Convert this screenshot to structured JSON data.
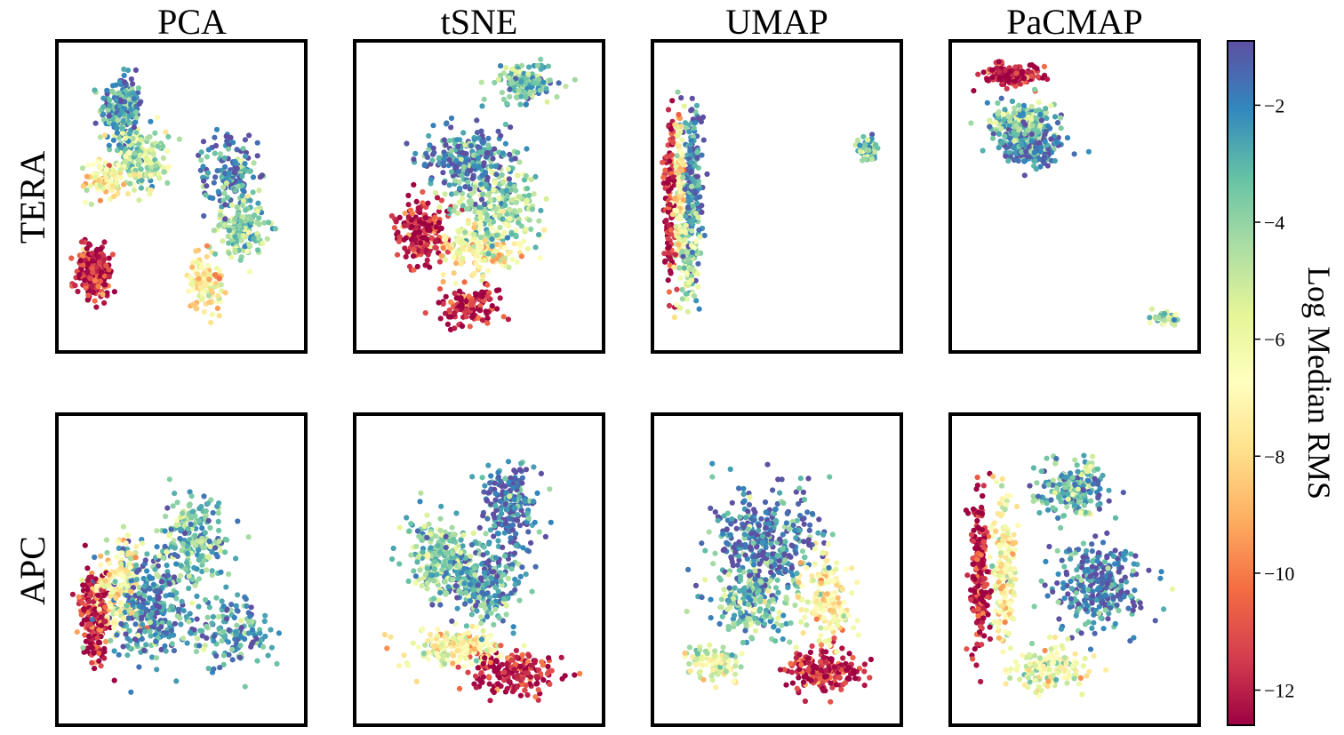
{
  "chart_data": {
    "type": "scatter",
    "title": "",
    "columns": [
      "PCA",
      "tSNE",
      "UMAP",
      "PaCMAP"
    ],
    "rows": [
      "TERA",
      "APC"
    ],
    "panels": [
      {
        "row": "TERA",
        "method": "PCA",
        "clusters": [
          {
            "center": [
              0.26,
              0.78
            ],
            "spread": [
              0.07,
              0.09
            ],
            "color_value": -2.5,
            "n": 220
          },
          {
            "center": [
              0.33,
              0.62
            ],
            "spread": [
              0.09,
              0.08
            ],
            "color_value": -5.0,
            "n": 200
          },
          {
            "center": [
              0.19,
              0.55
            ],
            "spread": [
              0.06,
              0.06
            ],
            "color_value": -7.0,
            "n": 90
          },
          {
            "center": [
              0.15,
              0.26
            ],
            "spread": [
              0.06,
              0.07
            ],
            "color_value": -12.0,
            "n": 260
          },
          {
            "center": [
              0.7,
              0.58
            ],
            "spread": [
              0.09,
              0.1
            ],
            "color_value": -2.0,
            "n": 160
          },
          {
            "center": [
              0.74,
              0.4
            ],
            "spread": [
              0.08,
              0.08
            ],
            "color_value": -4.0,
            "n": 170
          },
          {
            "center": [
              0.6,
              0.22
            ],
            "spread": [
              0.06,
              0.07
            ],
            "color_value": -7.5,
            "n": 110
          }
        ]
      },
      {
        "row": "TERA",
        "method": "tSNE",
        "clusters": [
          {
            "center": [
              0.69,
              0.86
            ],
            "spread": [
              0.1,
              0.05
            ],
            "color_value": -3.5,
            "n": 150
          },
          {
            "center": [
              0.45,
              0.62
            ],
            "spread": [
              0.14,
              0.09
            ],
            "color_value": -2.0,
            "n": 260
          },
          {
            "center": [
              0.58,
              0.47
            ],
            "spread": [
              0.14,
              0.1
            ],
            "color_value": -4.5,
            "n": 240
          },
          {
            "center": [
              0.5,
              0.33
            ],
            "spread": [
              0.14,
              0.06
            ],
            "color_value": -7.0,
            "n": 180
          },
          {
            "center": [
              0.27,
              0.38
            ],
            "spread": [
              0.08,
              0.09
            ],
            "color_value": -12.0,
            "n": 200
          },
          {
            "center": [
              0.46,
              0.15
            ],
            "spread": [
              0.1,
              0.05
            ],
            "color_value": -12.0,
            "n": 140
          }
        ]
      },
      {
        "row": "TERA",
        "method": "UMAP",
        "clusters": [
          {
            "center": [
              0.07,
              0.5
            ],
            "spread": [
              0.02,
              0.2
            ],
            "color_value": -12.0,
            "n": 140
          },
          {
            "center": [
              0.11,
              0.5
            ],
            "spread": [
              0.02,
              0.22
            ],
            "color_value": -7.0,
            "n": 140
          },
          {
            "center": [
              0.16,
              0.55
            ],
            "spread": [
              0.03,
              0.22
            ],
            "color_value": -2.0,
            "n": 220
          },
          {
            "center": [
              0.15,
              0.3
            ],
            "spread": [
              0.03,
              0.1
            ],
            "color_value": -5.0,
            "n": 100
          },
          {
            "center": [
              0.86,
              0.65
            ],
            "spread": [
              0.03,
              0.03
            ],
            "color_value": -3.5,
            "n": 60
          }
        ]
      },
      {
        "row": "TERA",
        "method": "PaCMAP",
        "clusters": [
          {
            "center": [
              0.25,
              0.89
            ],
            "spread": [
              0.09,
              0.03
            ],
            "color_value": -12.0,
            "n": 150
          },
          {
            "center": [
              0.28,
              0.74
            ],
            "spread": [
              0.1,
              0.05
            ],
            "color_value": -3.5,
            "n": 200
          },
          {
            "center": [
              0.33,
              0.66
            ],
            "spread": [
              0.1,
              0.05
            ],
            "color_value": -1.8,
            "n": 200
          },
          {
            "center": [
              0.86,
              0.11
            ],
            "spread": [
              0.05,
              0.015
            ],
            "color_value": -4.0,
            "n": 50
          }
        ]
      },
      {
        "row": "APC",
        "method": "PCA",
        "clusters": [
          {
            "center": [
              0.15,
              0.35
            ],
            "spread": [
              0.05,
              0.12
            ],
            "color_value": -12.0,
            "n": 200
          },
          {
            "center": [
              0.25,
              0.45
            ],
            "spread": [
              0.08,
              0.12
            ],
            "color_value": -7.0,
            "n": 170
          },
          {
            "center": [
              0.38,
              0.38
            ],
            "spread": [
              0.14,
              0.14
            ],
            "color_value": -2.0,
            "n": 320
          },
          {
            "center": [
              0.55,
              0.6
            ],
            "spread": [
              0.12,
              0.12
            ],
            "color_value": -3.5,
            "n": 220
          },
          {
            "center": [
              0.7,
              0.3
            ],
            "spread": [
              0.12,
              0.1
            ],
            "color_value": -2.5,
            "n": 150
          }
        ]
      },
      {
        "row": "APC",
        "method": "tSNE",
        "clusters": [
          {
            "center": [
              0.62,
              0.7
            ],
            "spread": [
              0.1,
              0.12
            ],
            "color_value": -1.5,
            "n": 220
          },
          {
            "center": [
              0.35,
              0.55
            ],
            "spread": [
              0.12,
              0.1
            ],
            "color_value": -4.0,
            "n": 220
          },
          {
            "center": [
              0.5,
              0.45
            ],
            "spread": [
              0.14,
              0.1
            ],
            "color_value": -2.5,
            "n": 260
          },
          {
            "center": [
              0.4,
              0.25
            ],
            "spread": [
              0.16,
              0.05
            ],
            "color_value": -7.0,
            "n": 180
          },
          {
            "center": [
              0.62,
              0.17
            ],
            "spread": [
              0.14,
              0.06
            ],
            "color_value": -12.0,
            "n": 200
          }
        ]
      },
      {
        "row": "APC",
        "method": "UMAP",
        "clusters": [
          {
            "center": [
              0.45,
              0.6
            ],
            "spread": [
              0.18,
              0.14
            ],
            "color_value": -1.8,
            "n": 340
          },
          {
            "center": [
              0.4,
              0.4
            ],
            "spread": [
              0.14,
              0.1
            ],
            "color_value": -3.5,
            "n": 220
          },
          {
            "center": [
              0.7,
              0.4
            ],
            "spread": [
              0.08,
              0.12
            ],
            "color_value": -7.0,
            "n": 160
          },
          {
            "center": [
              0.68,
              0.18
            ],
            "spread": [
              0.12,
              0.06
            ],
            "color_value": -12.0,
            "n": 200
          },
          {
            "center": [
              0.25,
              0.2
            ],
            "spread": [
              0.08,
              0.05
            ],
            "color_value": -5.5,
            "n": 100
          }
        ]
      },
      {
        "row": "APC",
        "method": "PaCMAP",
        "clusters": [
          {
            "center": [
              0.12,
              0.5
            ],
            "spread": [
              0.03,
              0.2
            ],
            "color_value": -12.0,
            "n": 220
          },
          {
            "center": [
              0.22,
              0.5
            ],
            "spread": [
              0.04,
              0.2
            ],
            "color_value": -7.0,
            "n": 180
          },
          {
            "center": [
              0.5,
              0.75
            ],
            "spread": [
              0.12,
              0.08
            ],
            "color_value": -3.0,
            "n": 200
          },
          {
            "center": [
              0.6,
              0.45
            ],
            "spread": [
              0.16,
              0.12
            ],
            "color_value": -1.8,
            "n": 300
          },
          {
            "center": [
              0.4,
              0.18
            ],
            "spread": [
              0.12,
              0.06
            ],
            "color_value": -6.0,
            "n": 150
          }
        ]
      }
    ],
    "colorbar": {
      "label": "Log Median RMS",
      "colormap": "Spectral",
      "range": [
        -12.6,
        -0.9
      ],
      "ticks": [
        -2,
        -4,
        -6,
        -8,
        -10,
        -12
      ],
      "tick_labels": [
        "−2",
        "−4",
        "−6",
        "−8",
        "−10",
        "−12"
      ]
    }
  }
}
